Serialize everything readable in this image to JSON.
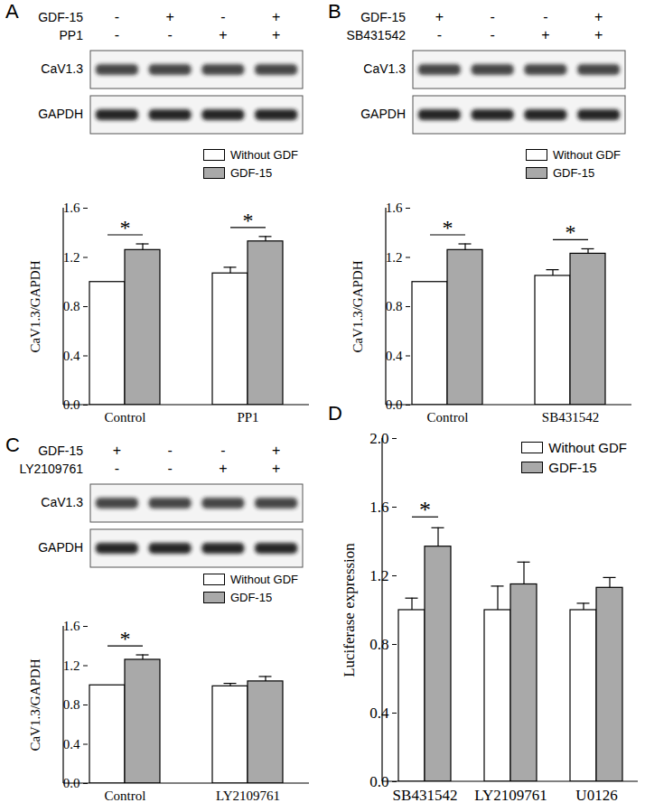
{
  "chart_data": [
    {
      "title": "A",
      "type": "bar",
      "blot": {
        "conditions": [
          {
            "name": "GDF-15",
            "signs": [
              "-",
              "+",
              "-",
              "+"
            ]
          },
          {
            "name": "PP1",
            "signs": [
              "-",
              "-",
              "+",
              "+"
            ]
          }
        ],
        "bands": [
          "CaV1.3",
          "GAPDH"
        ]
      },
      "categories": [
        "Control",
        "PP1"
      ],
      "series": [
        {
          "name": "Without GDF",
          "color": "#ffffff",
          "values": [
            1.0,
            1.07
          ],
          "errors": [
            0,
            0.05
          ]
        },
        {
          "name": "GDF-15",
          "color": "#a9a9a9",
          "values": [
            1.26,
            1.33
          ],
          "errors": [
            0.05,
            0.04
          ]
        }
      ],
      "annotations": [
        {
          "category": "Control",
          "text": "*"
        },
        {
          "category": "PP1",
          "text": "*"
        }
      ],
      "y_label": "CaV1.3/GAPDH",
      "ylim": [
        0,
        1.6
      ],
      "yticks": [
        {
          "value": 0,
          "label": "0.0"
        },
        0.4,
        0.8,
        1.2,
        1.6
      ],
      "legend": "top-right"
    },
    {
      "title": "B",
      "type": "bar",
      "blot": {
        "conditions": [
          {
            "name": "GDF-15",
            "signs": [
              "+",
              "-",
              "-",
              "+"
            ]
          },
          {
            "name": "SB431542",
            "signs": [
              "-",
              "-",
              "+",
              "+"
            ]
          }
        ],
        "bands": [
          "CaV1.3",
          "GAPDH"
        ]
      },
      "categories": [
        "Control",
        "SB431542"
      ],
      "series": [
        {
          "name": "Without GDF",
          "color": "#ffffff",
          "values": [
            1.0,
            1.05
          ],
          "errors": [
            0,
            0.05
          ]
        },
        {
          "name": "GDF-15",
          "color": "#a9a9a9",
          "values": [
            1.26,
            1.23
          ],
          "errors": [
            0.05,
            0.04
          ]
        }
      ],
      "annotations": [
        {
          "category": "Control",
          "text": "*"
        },
        {
          "category": "SB431542",
          "text": "*"
        }
      ],
      "y_label": "CaV1.3/GAPDH",
      "ylim": [
        0,
        1.6
      ],
      "yticks": [
        {
          "value": 0,
          "label": "0.0"
        },
        0.4,
        0.8,
        1.2,
        1.6
      ],
      "legend": "top-right"
    },
    {
      "title": "C",
      "type": "bar",
      "blot": {
        "conditions": [
          {
            "name": "GDF-15",
            "signs": [
              "+",
              "-",
              "-",
              "+"
            ]
          },
          {
            "name": "LY2109761",
            "signs": [
              "-",
              "-",
              "+",
              "+"
            ]
          }
        ],
        "bands": [
          "CaV1.3",
          "GAPDH"
        ]
      },
      "categories": [
        "Control",
        "LY2109761"
      ],
      "series": [
        {
          "name": "Without GDF",
          "color": "#ffffff",
          "values": [
            1.0,
            0.99
          ],
          "errors": [
            0,
            0.03
          ]
        },
        {
          "name": "GDF-15",
          "color": "#a9a9a9",
          "values": [
            1.26,
            1.04
          ],
          "errors": [
            0.05,
            0.05
          ]
        }
      ],
      "annotations": [
        {
          "category": "Control",
          "text": "*"
        }
      ],
      "y_label": "CaV1.3/GAPDH",
      "ylim": [
        0,
        1.6
      ],
      "yticks": [
        {
          "value": 0,
          "label": "0.0"
        },
        0.4,
        0.8,
        1.2,
        1.6
      ],
      "legend": "top-right"
    },
    {
      "title": "D",
      "type": "bar",
      "categories": [
        "SB431542",
        "LY2109761",
        "U0126"
      ],
      "series": [
        {
          "name": "Without GDF",
          "color": "#ffffff",
          "values": [
            1.0,
            1.0,
            1.0
          ],
          "errors": [
            0.07,
            0.14,
            0.04
          ]
        },
        {
          "name": "GDF-15",
          "color": "#a9a9a9",
          "values": [
            1.37,
            1.15,
            1.13
          ],
          "errors": [
            0.11,
            0.13,
            0.06
          ]
        }
      ],
      "annotations": [
        {
          "category": "SB431542",
          "text": "*"
        }
      ],
      "y_label": "Luciferase expression",
      "ylim": [
        0,
        2.0
      ],
      "yticks": [
        {
          "value": 0,
          "label": "0.0"
        },
        0.4,
        0.8,
        1.2,
        1.6,
        {
          "value": 2.0,
          "label": "2.0"
        }
      ],
      "legend": "top-right"
    }
  ]
}
